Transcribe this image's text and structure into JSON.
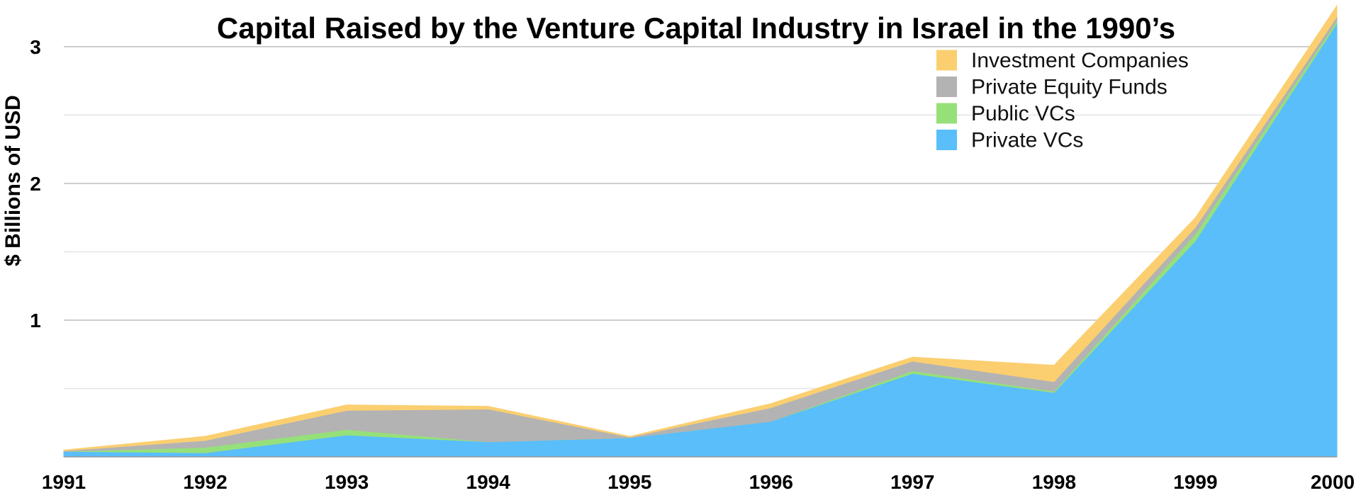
{
  "chart_data": {
    "type": "area",
    "stacked": true,
    "title": "Capital Raised by the Venture Capital Industry in Israel in the 1990’s",
    "xlabel": "",
    "ylabel": "$ Billions of USD",
    "x": [
      "1991",
      "1992",
      "1993",
      "1994",
      "1995",
      "1996",
      "1997",
      "1998",
      "1999",
      "2000"
    ],
    "ylim": [
      0,
      3.3
    ],
    "yticks": [
      "1",
      "2",
      "3"
    ],
    "grid": true,
    "legend_position": "top-right",
    "series": [
      {
        "name": "Private VCs",
        "color": "#5ABEFA",
        "values": [
          0.04,
          0.03,
          0.16,
          0.11,
          0.14,
          0.26,
          0.61,
          0.47,
          1.58,
          3.17
        ]
      },
      {
        "name": "Public VCs",
        "color": "#96E07A",
        "values": [
          0.0,
          0.04,
          0.04,
          0.0,
          0.0,
          0.0,
          0.02,
          0.01,
          0.05,
          0.02
        ]
      },
      {
        "name": "Private Equity Funds",
        "color": "#B3B3B3",
        "values": [
          0.005,
          0.05,
          0.14,
          0.24,
          0.005,
          0.1,
          0.07,
          0.07,
          0.05,
          0.03
        ]
      },
      {
        "name": "Investment Companies",
        "color": "#FBCF70",
        "values": [
          0.005,
          0.03,
          0.04,
          0.02,
          0.005,
          0.03,
          0.03,
          0.12,
          0.07,
          0.08
        ]
      }
    ]
  }
}
